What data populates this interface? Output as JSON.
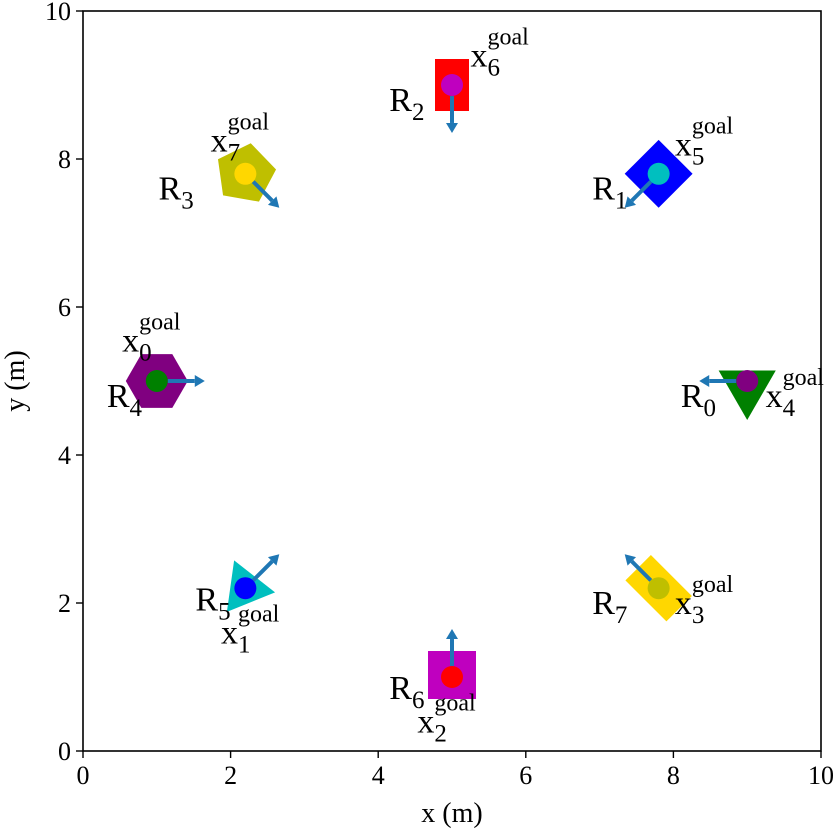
{
  "chart_data": {
    "type": "scatter",
    "xlabel": "x (m)",
    "ylabel": "y (m)",
    "xlim": [
      0,
      10
    ],
    "ylim": [
      0,
      10
    ],
    "x_ticks": [
      0,
      2,
      4,
      6,
      8,
      10
    ],
    "y_ticks": [
      0,
      2,
      4,
      6,
      8,
      10
    ],
    "x_tick_labels": [
      "0",
      "2",
      "4",
      "6",
      "8",
      "10"
    ],
    "y_tick_labels": [
      "0",
      "2",
      "4",
      "6",
      "8",
      "10"
    ],
    "grid": false,
    "arrow_color": "#1f77b4",
    "robots": [
      {
        "base": "R",
        "index": "0",
        "x": 9.0,
        "y": 5.0,
        "shape": "triangle-down",
        "color": "#008000",
        "heading_deg": 180
      },
      {
        "base": "R",
        "index": "1",
        "x": 7.8,
        "y": 7.8,
        "shape": "diamond",
        "color": "#0000ff",
        "heading_deg": 225
      },
      {
        "base": "R",
        "index": "2",
        "x": 5.0,
        "y": 9.0,
        "shape": "rect-tall",
        "color": "#ff0000",
        "heading_deg": 270
      },
      {
        "base": "R",
        "index": "3",
        "x": 2.2,
        "y": 7.8,
        "shape": "pentagon",
        "color": "#bfbf00",
        "heading_deg": 315
      },
      {
        "base": "R",
        "index": "4",
        "x": 1.0,
        "y": 5.0,
        "shape": "hexagon",
        "color": "#800080",
        "heading_deg": 0
      },
      {
        "base": "R",
        "index": "5",
        "x": 2.2,
        "y": 2.2,
        "shape": "triangle",
        "color": "#00bfbf",
        "heading_deg": 45
      },
      {
        "base": "R",
        "index": "6",
        "x": 5.0,
        "y": 1.0,
        "shape": "square",
        "color": "#bf00bf",
        "heading_deg": 90
      },
      {
        "base": "R",
        "index": "7",
        "x": 7.8,
        "y": 2.2,
        "shape": "rect-wide-rotated",
        "color": "#ffd700",
        "heading_deg": 135
      }
    ],
    "goals": [
      {
        "base": "x",
        "index": "0",
        "sup": "goal",
        "x": 1.0,
        "y": 5.0,
        "color": "#008000"
      },
      {
        "base": "x",
        "index": "1",
        "sup": "goal",
        "x": 2.2,
        "y": 2.2,
        "color": "#0000ff"
      },
      {
        "base": "x",
        "index": "2",
        "sup": "goal",
        "x": 5.0,
        "y": 1.0,
        "color": "#ff0000"
      },
      {
        "base": "x",
        "index": "3",
        "sup": "goal",
        "x": 7.8,
        "y": 2.2,
        "color": "#bfbf00"
      },
      {
        "base": "x",
        "index": "4",
        "sup": "goal",
        "x": 9.0,
        "y": 5.0,
        "color": "#800080"
      },
      {
        "base": "x",
        "index": "5",
        "sup": "goal",
        "x": 7.8,
        "y": 7.8,
        "color": "#00bfbf"
      },
      {
        "base": "x",
        "index": "6",
        "sup": "goal",
        "x": 5.0,
        "y": 9.0,
        "color": "#bf00bf"
      },
      {
        "base": "x",
        "index": "7",
        "sup": "goal",
        "x": 2.2,
        "y": 7.8,
        "color": "#ffd700"
      }
    ]
  }
}
